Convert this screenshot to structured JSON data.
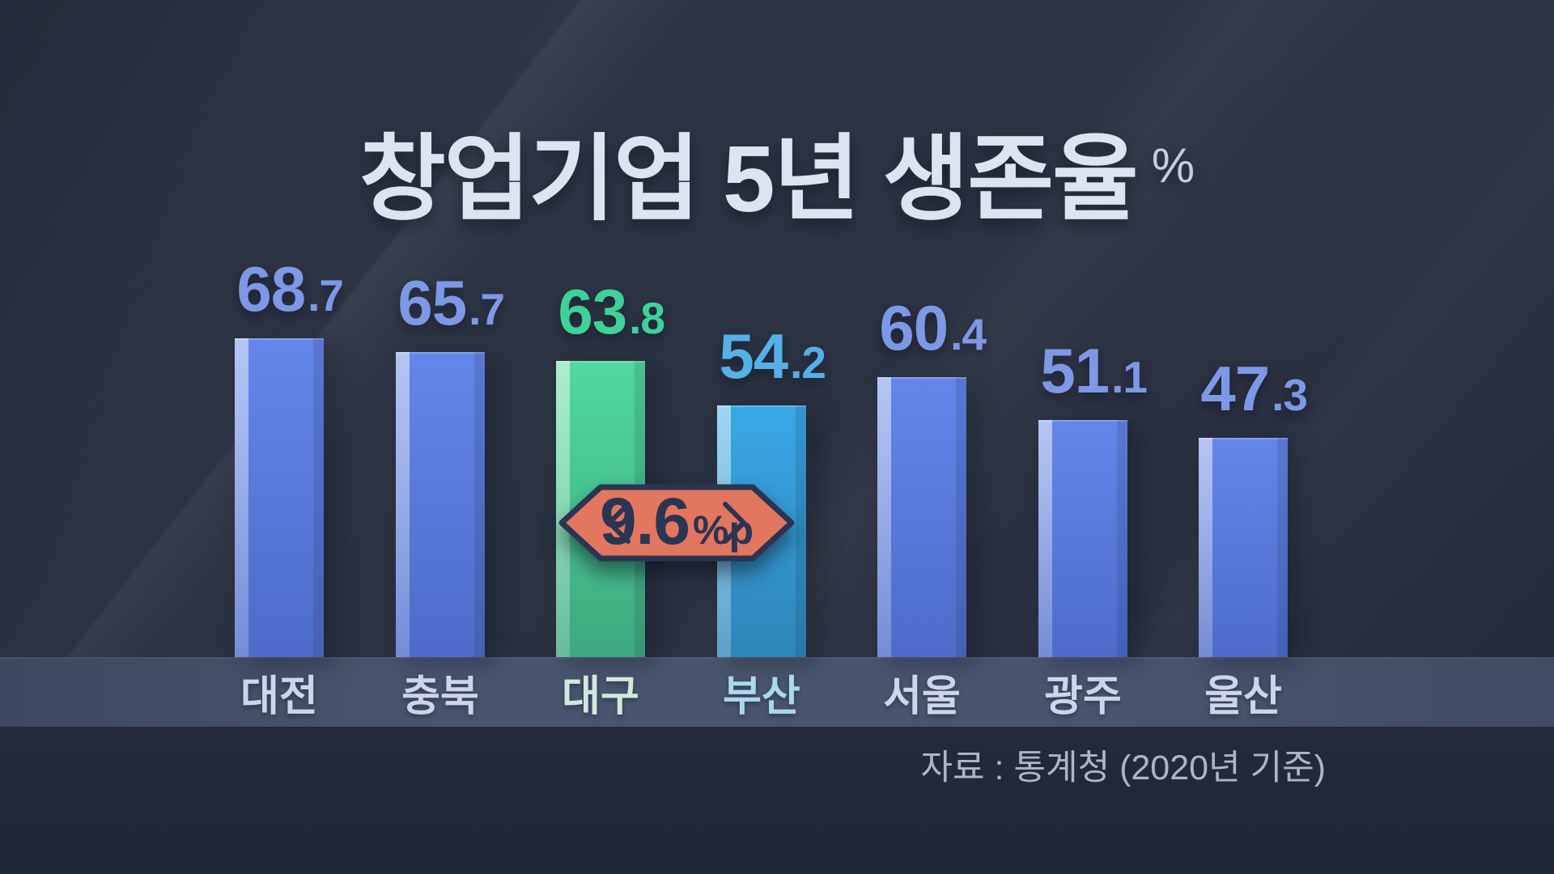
{
  "title": {
    "text": "창업기업 5년 생존율",
    "unit": "%"
  },
  "source": {
    "text": "자료 : 통계청 (2020년 기준)"
  },
  "badge": {
    "value": "9.6",
    "unit": "%p",
    "fill": "#e3765f",
    "border": "#2b3453",
    "text_color": "#2b3453"
  },
  "palette": {
    "blue": {
      "number": "#7d98e6",
      "bar_top": "#6386ea",
      "bar_bottom": "#4d6cc9",
      "label": "#ccd6e8"
    },
    "green": {
      "number": "#3ed29a",
      "bar_top": "#50d99f",
      "bar_bottom": "#3da97e",
      "label": "#cfeadd"
    },
    "cyan": {
      "number": "#55b0e8",
      "bar_top": "#39a7e5",
      "bar_bottom": "#2e86b9",
      "label": "#aad9ef"
    }
  },
  "chart_data": {
    "type": "bar",
    "title": "창업기업 5년 생존율",
    "unit": "%",
    "categories": [
      "대전",
      "충북",
      "대구",
      "부산",
      "서울",
      "광주",
      "울산"
    ],
    "values": [
      68.7,
      65.7,
      63.8,
      54.2,
      60.4,
      51.1,
      47.3
    ],
    "bar_colors": [
      "blue",
      "blue",
      "green",
      "cyan",
      "blue",
      "blue",
      "blue"
    ],
    "ylim": [
      0,
      75
    ],
    "grid": false,
    "legend": false,
    "annotation": {
      "text": "9.6%p",
      "between": [
        "대구",
        "부산"
      ]
    },
    "source": "자료 : 통계청 (2020년 기준)"
  }
}
